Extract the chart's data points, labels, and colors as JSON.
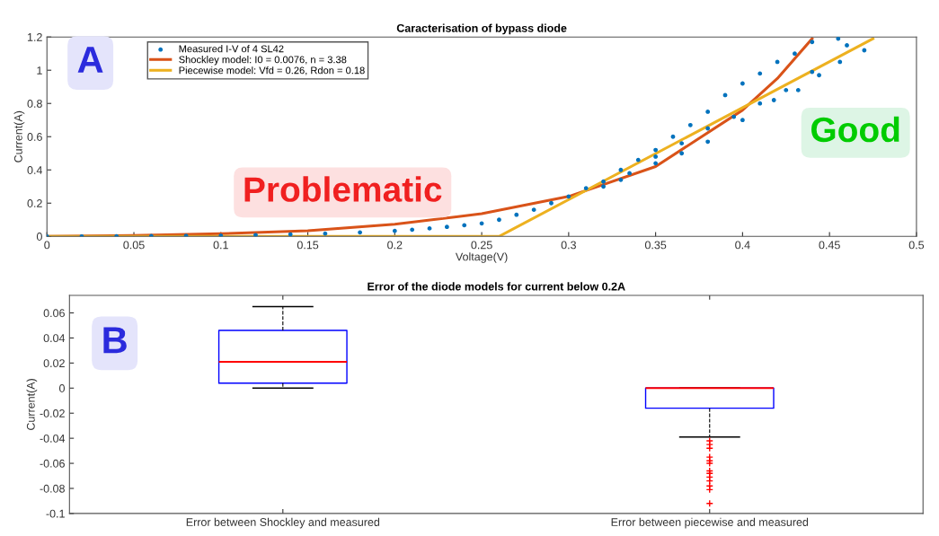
{
  "chart_data": [
    {
      "type": "scatter",
      "title": "Caracterisation of bypass diode",
      "xlabel": "Voltage(V)",
      "ylabel": "Current(A)",
      "xlim": [
        0,
        0.5
      ],
      "ylim": [
        0,
        1.2
      ],
      "xticks": [
        0,
        0.05,
        0.1,
        0.15,
        0.2,
        0.25,
        0.3,
        0.35,
        0.4,
        0.45,
        0.5
      ],
      "yticks": [
        0,
        0.2,
        0.4,
        0.6,
        0.8,
        1,
        1.2
      ],
      "legend": "top left",
      "grid": false,
      "annotations": [
        "A",
        "Problematic",
        "Good"
      ],
      "series": [
        {
          "name": "Measured I-V of 4 SL42",
          "type": "scatter",
          "marker": "circle",
          "color": "#0072bd",
          "x": [
            0.0,
            0.02,
            0.04,
            0.06,
            0.08,
            0.1,
            0.12,
            0.14,
            0.16,
            0.18,
            0.2,
            0.21,
            0.22,
            0.23,
            0.24,
            0.25,
            0.26,
            0.27,
            0.28,
            0.29,
            0.3,
            0.31,
            0.32,
            0.33,
            0.34,
            0.35,
            0.36,
            0.37,
            0.38,
            0.39,
            0.4,
            0.41,
            0.42,
            0.43,
            0.44,
            0.455,
            0.32,
            0.335,
            0.35,
            0.365,
            0.38,
            0.395,
            0.41,
            0.425,
            0.44,
            0.46,
            0.33,
            0.35,
            0.365,
            0.38,
            0.4,
            0.418,
            0.432,
            0.444,
            0.456,
            0.47
          ],
          "values": [
            0.0,
            0.0,
            0.001,
            0.002,
            0.003,
            0.005,
            0.008,
            0.012,
            0.017,
            0.024,
            0.033,
            0.04,
            0.048,
            0.057,
            0.067,
            0.078,
            0.1,
            0.13,
            0.16,
            0.2,
            0.24,
            0.29,
            0.33,
            0.4,
            0.46,
            0.52,
            0.6,
            0.67,
            0.75,
            0.85,
            0.92,
            0.98,
            1.05,
            1.1,
            1.17,
            1.19,
            0.3,
            0.38,
            0.48,
            0.56,
            0.65,
            0.72,
            0.8,
            0.88,
            0.99,
            1.15,
            0.34,
            0.44,
            0.5,
            0.57,
            0.7,
            0.82,
            0.88,
            0.97,
            1.05,
            1.12
          ]
        },
        {
          "name": "Shockley model: I0 = 0.0076, n = 3.38",
          "type": "line",
          "marker": "none",
          "color": "#d95319",
          "x": [
            0,
            0.05,
            0.1,
            0.15,
            0.2,
            0.25,
            0.3,
            0.35,
            0.4,
            0.42,
            0.44
          ],
          "values": [
            0,
            0.006,
            0.016,
            0.034,
            0.073,
            0.136,
            0.24,
            0.42,
            0.76,
            0.95,
            1.19
          ]
        },
        {
          "name": "Piecewise model: Vfd = 0.26, Rdon = 0.18",
          "type": "line",
          "marker": "none",
          "color": "#edb120",
          "x": [
            0,
            0.26,
            0.475
          ],
          "values": [
            0,
            0,
            1.19
          ]
        }
      ]
    },
    {
      "type": "box",
      "title": "Error of the diode models for current below 0.2A",
      "ylabel": "Current(A)",
      "categories": [
        "Error between Shockley and measured",
        "Error between piecewise and measured"
      ],
      "ylim": [
        -0.1,
        0.074
      ],
      "yticks": [
        -0.1,
        -0.08,
        -0.06,
        -0.04,
        -0.02,
        0,
        0.02,
        0.04,
        0.06
      ],
      "grid": false,
      "annotations": [
        "B"
      ],
      "boxes": [
        {
          "low": 0.0,
          "q1": 0.004,
          "median": 0.021,
          "q3": 0.046,
          "high": 0.065
        },
        {
          "low": -0.039,
          "q1": -0.016,
          "median": 0.0,
          "q3": 0.0,
          "high": 0.0,
          "outliers": [
            -0.042,
            -0.045,
            -0.048,
            -0.055,
            -0.058,
            -0.06,
            -0.066,
            -0.068,
            -0.071,
            -0.074,
            -0.078,
            -0.081,
            -0.092
          ]
        }
      ]
    }
  ]
}
